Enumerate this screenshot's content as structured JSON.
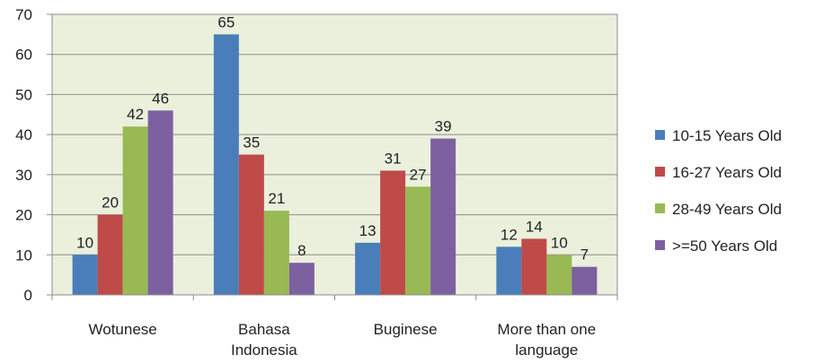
{
  "chart_data": {
    "type": "bar",
    "categories": [
      [
        "Wotunese"
      ],
      [
        "Bahasa",
        "Indonesia"
      ],
      [
        "Buginese"
      ],
      [
        "More than one",
        "language"
      ]
    ],
    "series": [
      {
        "name": "10-15 Years Old",
        "color": "#4a7ebb",
        "values": [
          10,
          65,
          13,
          12
        ]
      },
      {
        "name": "16-27 Years Old",
        "color": "#be4b48",
        "values": [
          20,
          35,
          31,
          14
        ]
      },
      {
        "name": "28-49 Years Old",
        "color": "#98b954",
        "values": [
          42,
          21,
          27,
          10
        ]
      },
      {
        "name": ">=50 Years Old",
        "color": "#7d60a0",
        "values": [
          46,
          8,
          39,
          7
        ]
      }
    ],
    "ylim": [
      0,
      70
    ],
    "yticks": [
      0,
      10,
      20,
      30,
      40,
      50,
      60,
      70
    ],
    "grid": true,
    "legend_position": "right",
    "plot_background": "#eaf0dc",
    "gridline_color": "#8c8c8c"
  }
}
